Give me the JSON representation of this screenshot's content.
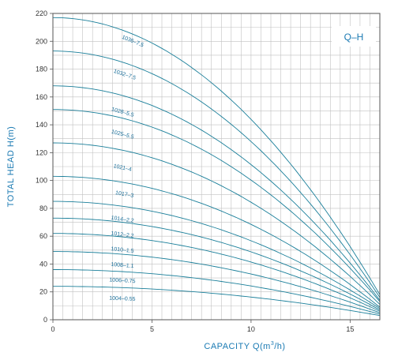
{
  "chart_data": {
    "type": "line",
    "badge": "Q–H",
    "xlabel_main": "CAPACITY Q(m",
    "xlabel_sup": "3",
    "xlabel_tail": "/h)",
    "ylabel": "TOTAL HEAD H(m)",
    "xlim": [
      0,
      16.5
    ],
    "ylim": [
      0,
      220
    ],
    "x_ticks": [
      "0",
      "5",
      "10",
      "15"
    ],
    "y_ticks": [
      "0",
      "20",
      "40",
      "60",
      "80",
      "100",
      "120",
      "140",
      "160",
      "180",
      "200",
      "220"
    ],
    "grid": true,
    "colors": {
      "curve": "#1a7f9a",
      "grid": "#c0c0c0",
      "frame": "#555555",
      "accent": "#1a7ab3"
    },
    "series": [
      {
        "name": "1036–7.5",
        "h0": 217,
        "h_end": 18,
        "label_at": [
          4.0,
          199
        ]
      },
      {
        "name": "1032–7.5",
        "h0": 193,
        "h_end": 16,
        "label_at": [
          3.6,
          175
        ]
      },
      {
        "name": "1028–5.5",
        "h0": 168,
        "h_end": 14,
        "label_at": [
          3.5,
          148
        ]
      },
      {
        "name": "1025–5.5",
        "h0": 151,
        "h_end": 13,
        "label_at": [
          3.5,
          132
        ]
      },
      {
        "name": "1021–4",
        "h0": 127,
        "h_end": 11,
        "label_at": [
          3.5,
          108
        ]
      },
      {
        "name": "1017–3",
        "h0": 103,
        "h_end": 9,
        "label_at": [
          3.6,
          89
        ]
      },
      {
        "name": "1014–2.2",
        "h0": 85,
        "h_end": 8,
        "label_at": [
          3.5,
          71
        ]
      },
      {
        "name": "1012–2.2",
        "h0": 73,
        "h_end": 7,
        "label_at": [
          3.5,
          60
        ]
      },
      {
        "name": "1010–1.5",
        "h0": 62,
        "h_end": 6,
        "label_at": [
          3.5,
          49
        ]
      },
      {
        "name": "1008–1.1",
        "h0": 49,
        "h_end": 5,
        "label_at": [
          3.5,
          38
        ]
      },
      {
        "name": "1006–0.75",
        "h0": 36,
        "h_end": 4,
        "label_at": [
          3.5,
          27
        ]
      },
      {
        "name": "1004–0.55",
        "h0": 24,
        "h_end": 3,
        "label_at": [
          3.5,
          14
        ]
      }
    ]
  }
}
